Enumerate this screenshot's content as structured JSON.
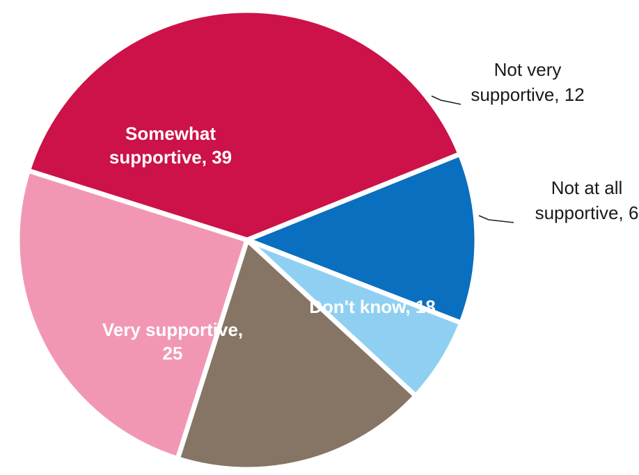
{
  "chart_data": {
    "type": "pie",
    "title": "",
    "start_angle_deg": 68,
    "direction": "clockwise",
    "slices": [
      {
        "label_lines": [
          "Not very",
          "supportive, 12"
        ],
        "value": 12,
        "color": "#0a6fbf",
        "label_position": "outside",
        "name": "pie-slice-not-very-supportive"
      },
      {
        "label_lines": [
          "Not at all",
          "supportive, 6"
        ],
        "value": 6,
        "color": "#8fd0f2",
        "label_position": "outside",
        "name": "pie-slice-not-at-all-supportive"
      },
      {
        "label_lines": [
          "Don't know, 18"
        ],
        "value": 18,
        "color": "#867565",
        "label_position": "inside",
        "name": "pie-slice-dont-know"
      },
      {
        "label_lines": [
          "Very supportive,",
          "25"
        ],
        "value": 25,
        "color": "#f197b4",
        "label_position": "inside",
        "name": "pie-slice-very-supportive"
      },
      {
        "label_lines": [
          "Somewhat",
          "supportive, 39"
        ],
        "value": 39,
        "color": "#cc1248",
        "label_position": "inside",
        "name": "pie-slice-somewhat-supportive"
      }
    ]
  }
}
